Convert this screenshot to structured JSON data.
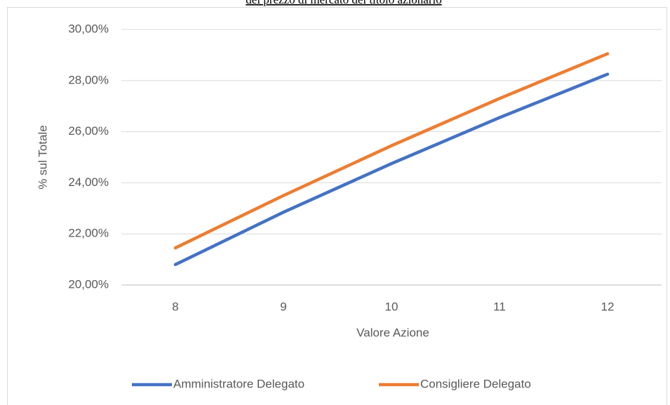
{
  "chart_data": {
    "type": "line",
    "title": "del prezzo di mercato del titolo azionario",
    "x_label": "Valore Azione",
    "y_label": "% sul Totale",
    "categories": [
      "8",
      "9",
      "10",
      "11",
      "12"
    ],
    "series": [
      {
        "name": "Amministratore Delegato",
        "color": "#4472c4",
        "values": [
          20.8,
          22.85,
          24.75,
          26.55,
          28.25
        ]
      },
      {
        "name": "Consigliere Delegato",
        "color": "#ed7d31",
        "values": [
          21.45,
          23.5,
          25.45,
          27.3,
          29.05
        ]
      }
    ],
    "ylim": [
      20,
      30
    ],
    "yticks": [
      {
        "value": 20,
        "label": "20,00%"
      },
      {
        "value": 22,
        "label": "22,00%"
      },
      {
        "value": 24,
        "label": "24,00%"
      },
      {
        "value": 26,
        "label": "26,00%"
      },
      {
        "value": 28,
        "label": "28,00%"
      },
      {
        "value": 30,
        "label": "30,00%"
      }
    ],
    "grid": true,
    "legend": "bottom"
  }
}
